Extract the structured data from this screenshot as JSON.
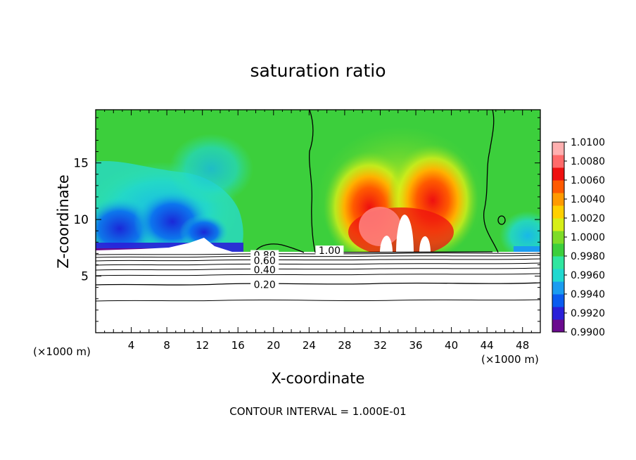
{
  "chart_data": {
    "type": "heatmap",
    "title": "saturation ratio",
    "xlabel": "X-coordinate",
    "ylabel": "Z-coordinate",
    "x_unit": "(×1000 m)",
    "y_unit": "(×1000 m)",
    "xlim": [
      0,
      50
    ],
    "ylim": [
      0,
      19.7
    ],
    "x_ticks": [
      4,
      8,
      12,
      16,
      20,
      24,
      28,
      32,
      36,
      40,
      44,
      48
    ],
    "y_ticks": [
      5,
      10,
      15
    ],
    "colorbar": {
      "range": [
        0.99,
        1.01
      ],
      "labels": [
        "1.0100",
        "1.0080",
        "1.0060",
        "1.0040",
        "1.0020",
        "1.0000",
        "0.9980",
        "0.9960",
        "0.9940",
        "0.9920",
        "0.9900"
      ],
      "colors": [
        "#6a0a8e",
        "#2a1fd8",
        "#0a5cf0",
        "#1a9cf0",
        "#20d8d0",
        "#30e6a0",
        "#3ccf3c",
        "#7edc28",
        "#d6ee18",
        "#ffd000",
        "#ff9a00",
        "#ff5a00",
        "#ee1010",
        "#ff6a6a",
        "#ffb0b0"
      ]
    },
    "contour_labels": [
      {
        "value": "1.00",
        "x": 26.3,
        "z": 7.2
      },
      {
        "value": "0.80",
        "x": 19.0,
        "z": 6.8
      },
      {
        "value": "0.60",
        "x": 19.0,
        "z": 6.3
      },
      {
        "value": "0.40",
        "x": 19.0,
        "z": 5.5
      },
      {
        "value": "0.20",
        "x": 19.0,
        "z": 4.2
      }
    ],
    "footer": "CONTOUR INTERVAL = 1.000E-01"
  }
}
